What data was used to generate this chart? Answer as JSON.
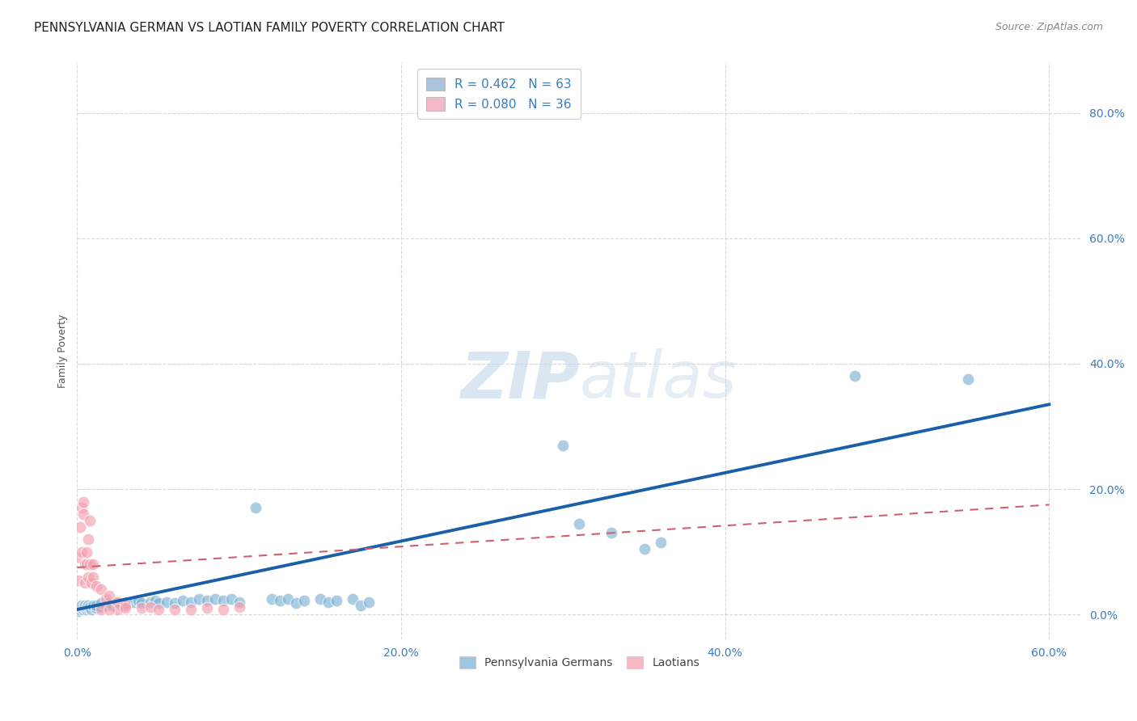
{
  "title": "PENNSYLVANIA GERMAN VS LAOTIAN FAMILY POVERTY CORRELATION CHART",
  "source": "Source: ZipAtlas.com",
  "xlabel_ticks": [
    "0.0%",
    "20.0%",
    "40.0%",
    "60.0%"
  ],
  "ylabel_ticks": [
    "0.0%",
    "20.0%",
    "40.0%",
    "60.0%",
    "80.0%"
  ],
  "ylabel_label": "Family Poverty",
  "xlim": [
    0.0,
    0.62
  ],
  "ylim": [
    -0.04,
    0.88
  ],
  "legend_entries": [
    {
      "label": "R = 0.462   N = 63",
      "facecolor": "#aac4e0"
    },
    {
      "label": "R = 0.080   N = 36",
      "facecolor": "#f5b8c8"
    }
  ],
  "watermark": "ZIPatlas",
  "blue_scatter": [
    [
      0.001,
      0.005
    ],
    [
      0.002,
      0.008
    ],
    [
      0.002,
      0.012
    ],
    [
      0.003,
      0.01
    ],
    [
      0.003,
      0.015
    ],
    [
      0.004,
      0.008
    ],
    [
      0.004,
      0.012
    ],
    [
      0.005,
      0.01
    ],
    [
      0.005,
      0.015
    ],
    [
      0.006,
      0.008
    ],
    [
      0.006,
      0.012
    ],
    [
      0.007,
      0.01
    ],
    [
      0.007,
      0.015
    ],
    [
      0.008,
      0.01
    ],
    [
      0.008,
      0.012
    ],
    [
      0.009,
      0.008
    ],
    [
      0.01,
      0.012
    ],
    [
      0.01,
      0.015
    ],
    [
      0.012,
      0.01
    ],
    [
      0.012,
      0.015
    ],
    [
      0.015,
      0.012
    ],
    [
      0.015,
      0.018
    ],
    [
      0.018,
      0.015
    ],
    [
      0.02,
      0.018
    ],
    [
      0.022,
      0.015
    ],
    [
      0.025,
      0.018
    ],
    [
      0.028,
      0.015
    ],
    [
      0.03,
      0.018
    ],
    [
      0.035,
      0.02
    ],
    [
      0.038,
      0.022
    ],
    [
      0.04,
      0.018
    ],
    [
      0.045,
      0.02
    ],
    [
      0.048,
      0.022
    ],
    [
      0.05,
      0.018
    ],
    [
      0.055,
      0.02
    ],
    [
      0.06,
      0.018
    ],
    [
      0.065,
      0.022
    ],
    [
      0.07,
      0.02
    ],
    [
      0.075,
      0.025
    ],
    [
      0.08,
      0.022
    ],
    [
      0.085,
      0.025
    ],
    [
      0.09,
      0.022
    ],
    [
      0.095,
      0.025
    ],
    [
      0.1,
      0.02
    ],
    [
      0.11,
      0.17
    ],
    [
      0.12,
      0.025
    ],
    [
      0.125,
      0.022
    ],
    [
      0.13,
      0.025
    ],
    [
      0.135,
      0.018
    ],
    [
      0.14,
      0.022
    ],
    [
      0.15,
      0.025
    ],
    [
      0.155,
      0.02
    ],
    [
      0.16,
      0.022
    ],
    [
      0.17,
      0.025
    ],
    [
      0.175,
      0.015
    ],
    [
      0.18,
      0.02
    ],
    [
      0.3,
      0.27
    ],
    [
      0.31,
      0.145
    ],
    [
      0.33,
      0.13
    ],
    [
      0.35,
      0.105
    ],
    [
      0.36,
      0.115
    ],
    [
      0.48,
      0.38
    ],
    [
      0.55,
      0.375
    ]
  ],
  "pink_scatter": [
    [
      0.001,
      0.055
    ],
    [
      0.002,
      0.09
    ],
    [
      0.002,
      0.14
    ],
    [
      0.003,
      0.17
    ],
    [
      0.003,
      0.1
    ],
    [
      0.004,
      0.18
    ],
    [
      0.004,
      0.16
    ],
    [
      0.005,
      0.08
    ],
    [
      0.005,
      0.05
    ],
    [
      0.006,
      0.1
    ],
    [
      0.006,
      0.08
    ],
    [
      0.007,
      0.06
    ],
    [
      0.007,
      0.12
    ],
    [
      0.008,
      0.15
    ],
    [
      0.008,
      0.08
    ],
    [
      0.009,
      0.05
    ],
    [
      0.01,
      0.08
    ],
    [
      0.01,
      0.06
    ],
    [
      0.012,
      0.045
    ],
    [
      0.015,
      0.04
    ],
    [
      0.018,
      0.025
    ],
    [
      0.02,
      0.03
    ],
    [
      0.025,
      0.02
    ],
    [
      0.03,
      0.015
    ],
    [
      0.04,
      0.01
    ],
    [
      0.045,
      0.012
    ],
    [
      0.05,
      0.008
    ],
    [
      0.06,
      0.008
    ],
    [
      0.07,
      0.008
    ],
    [
      0.08,
      0.01
    ],
    [
      0.09,
      0.008
    ],
    [
      0.1,
      0.012
    ],
    [
      0.025,
      0.008
    ],
    [
      0.03,
      0.01
    ],
    [
      0.015,
      0.008
    ],
    [
      0.02,
      0.008
    ]
  ],
  "blue_line": {
    "x0": 0.0,
    "y0": 0.008,
    "x1": 0.6,
    "y1": 0.335
  },
  "pink_line": {
    "x0": 0.0,
    "y0": 0.075,
    "x1": 0.6,
    "y1": 0.175
  },
  "scatter_blue_color": "#7fb3d3",
  "scatter_pink_color": "#f4a0b0",
  "line_blue_color": "#1a5fa8",
  "line_pink_color": "#d06070",
  "bg_color": "#ffffff",
  "grid_color": "#d8d8d8",
  "title_fontsize": 11,
  "axis_label_fontsize": 9,
  "tick_fontsize": 10,
  "legend_label_color": "#3a7cc2"
}
